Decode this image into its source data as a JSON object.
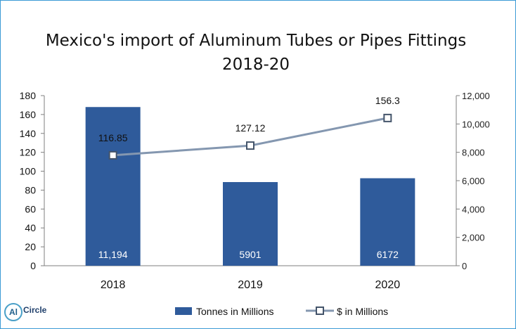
{
  "chart_data": {
    "type": "bar+line",
    "title_lines": [
      "Mexico's import of Aluminum Tubes or Pipes Fittings",
      "2018-20"
    ],
    "categories": [
      "2018",
      "2019",
      "2020"
    ],
    "left_axis": {
      "ylim": [
        0,
        180
      ],
      "ticks": [
        "0",
        "20",
        "40",
        "60",
        "80",
        "100",
        "120",
        "140",
        "160",
        "180"
      ],
      "tick_values": [
        0,
        20,
        40,
        60,
        80,
        100,
        120,
        140,
        160,
        180
      ]
    },
    "right_axis": {
      "ylim": [
        0,
        12000
      ],
      "ticks": [
        "0",
        "2,000",
        "4,000",
        "6,000",
        "8,000",
        "10,000",
        "12,000"
      ],
      "tick_values": [
        0,
        2000,
        4000,
        6000,
        8000,
        10000,
        12000
      ]
    },
    "series": [
      {
        "name": "Tonnes in Millions",
        "kind": "bar",
        "axis": "right",
        "color": "#2f5b9b",
        "values": [
          11194,
          5901,
          6172
        ],
        "labels": [
          "11,194",
          "5901",
          "6172"
        ]
      },
      {
        "name": "$ in Millions",
        "kind": "line",
        "axis": "left",
        "color": "#8497b0",
        "marker_color": "#44546a",
        "values": [
          116.85,
          127.12,
          156.3
        ],
        "labels": [
          "116.85",
          "127.12",
          "156.3"
        ]
      }
    ],
    "grid": false,
    "legend_position": "bottom"
  },
  "logo": {
    "mark": "Al",
    "word": "Circle"
  }
}
